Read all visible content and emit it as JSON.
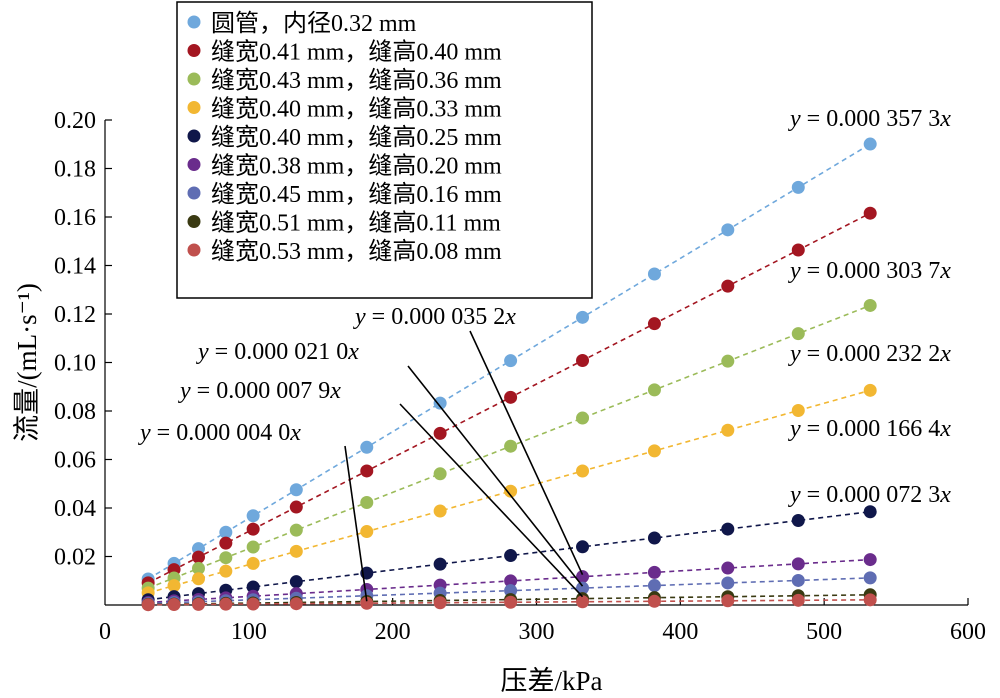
{
  "chart_data": {
    "type": "scatter",
    "xlabel": "压差/kPa",
    "ylabel": "流量/(mL·s⁻¹)",
    "xlim": [
      0,
      600
    ],
    "ylim": [
      0,
      0.2
    ],
    "x_ticks": [
      "0",
      "100",
      "200",
      "300",
      "400",
      "500",
      "600"
    ],
    "y_ticks": [
      "0.02",
      "0.04",
      "0.06",
      "0.08",
      "0.10",
      "0.12",
      "0.14",
      "0.16",
      "0.18",
      "0.20"
    ],
    "grid": false,
    "legend_position": "top-left",
    "x": [
      30,
      48,
      65,
      84,
      103,
      133,
      182,
      233,
      282,
      332,
      382,
      433,
      482,
      532
    ],
    "series": [
      {
        "name": "圆管，内径0.32 mm",
        "color": "#6fa8dc",
        "slope": 0.0003573,
        "equation": "y = 0.000 357 3x"
      },
      {
        "name": "缝宽0.41 mm，缝高0.40 mm",
        "color": "#a31621",
        "slope": 0.0003037,
        "equation": "y = 0.000 303 7x"
      },
      {
        "name": "缝宽0.43 mm，缝高0.36 mm",
        "color": "#9bbb59",
        "slope": 0.0002322,
        "equation": "y = 0.000 232 2x"
      },
      {
        "name": "缝宽0.40 mm，缝高0.33 mm",
        "color": "#f2b732",
        "slope": 0.0001664,
        "equation": "y = 0.000 166 4x"
      },
      {
        "name": "缝宽0.40 mm，缝高0.25 mm",
        "color": "#10174a",
        "slope": 7.23e-05,
        "equation": "y = 0.000 072 3x"
      },
      {
        "name": "缝宽0.38 mm，缝高0.20 mm",
        "color": "#6a2c8c",
        "slope": 3.52e-05,
        "equation": "y = 0.000 035 2x"
      },
      {
        "name": "缝宽0.45 mm，缝高0.16 mm",
        "color": "#5f6db3",
        "slope": 2.1e-05,
        "equation": "y = 0.000 021 0x"
      },
      {
        "name": "缝宽0.51 mm，缝高0.11 mm",
        "color": "#3a3a12",
        "slope": 7.9e-06,
        "equation": "y = 0.000 007 9x"
      },
      {
        "name": "缝宽0.53 mm，缝高0.08 mm",
        "color": "#c0504d",
        "slope": 4e-06,
        "equation": "y = 0.000 004 0x"
      }
    ]
  }
}
